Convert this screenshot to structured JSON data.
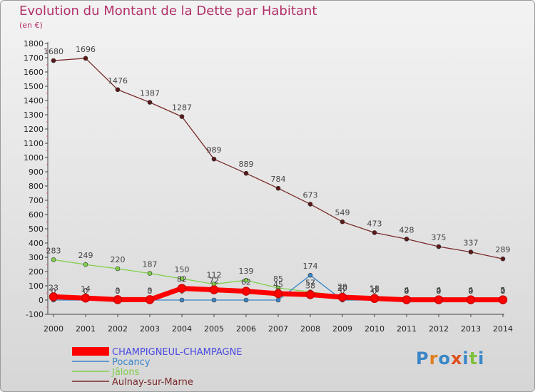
{
  "chart_data": {
    "type": "line",
    "title": "Evolution du Montant de la Dette par Habitant",
    "subtitle": "(en €)",
    "xlabel": "",
    "ylabel": "",
    "x": [
      "2000",
      "2001",
      "2002",
      "2003",
      "2004",
      "2005",
      "2006",
      "2007",
      "2008",
      "2009",
      "2010",
      "2011",
      "2012",
      "2013",
      "2014"
    ],
    "ylim": [
      -100,
      1800
    ],
    "yticks": [
      -100,
      0,
      100,
      200,
      300,
      400,
      500,
      600,
      700,
      800,
      900,
      1000,
      1100,
      1200,
      1300,
      1400,
      1500,
      1600,
      1700,
      1800
    ],
    "grid": false,
    "legend_position": "bottom-left",
    "series": [
      {
        "name": "CHAMPIGNEUL-CHAMPAGNE",
        "color": "#ff0000",
        "marker_color": "#d00000",
        "values": [
          23,
          14,
          3,
          3,
          82,
          72,
          62,
          45,
          38,
          20,
          11,
          2,
          2,
          2,
          2
        ],
        "labels": [
          "23",
          "14",
          "3",
          "3",
          "82",
          "72",
          "62",
          "45",
          "38",
          "20",
          "11",
          "2",
          "2",
          "2",
          "2"
        ]
      },
      {
        "name": "Pocancy",
        "color": "#3a86c8",
        "marker_color": "#3a86c8",
        "values": [
          0,
          0,
          0,
          0,
          0,
          0,
          0,
          0,
          174,
          0,
          0,
          0,
          0,
          0,
          0
        ],
        "labels": [
          "0",
          "0",
          "0",
          "0",
          "0",
          "0",
          "0",
          "0",
          "174",
          "0",
          "0",
          "0",
          "0",
          "0",
          "0"
        ]
      },
      {
        "name": "Jâlons",
        "color": "#7fd04a",
        "marker_color": "#7fd04a",
        "values": [
          283,
          249,
          220,
          187,
          150,
          112,
          139,
          85,
          57,
          29,
          18,
          4,
          4,
          4,
          5
        ],
        "labels": [
          "283",
          "249",
          "220",
          "187",
          "150",
          "112",
          "139",
          "85",
          "57",
          "29",
          "18",
          "4",
          "4",
          "4",
          "5"
        ]
      },
      {
        "name": "Aulnay-sur-Marne",
        "color": "#7a2a2a",
        "marker_color": "#5a1818",
        "values": [
          1680,
          1696,
          1476,
          1387,
          1287,
          989,
          889,
          784,
          673,
          549,
          473,
          428,
          375,
          337,
          289
        ],
        "labels": [
          "1680",
          "1696",
          "1476",
          "1387",
          "1287",
          "989",
          "889",
          "784",
          "673",
          "549",
          "473",
          "428",
          "375",
          "337",
          "289"
        ]
      }
    ]
  },
  "logo_text": "Proxiti"
}
